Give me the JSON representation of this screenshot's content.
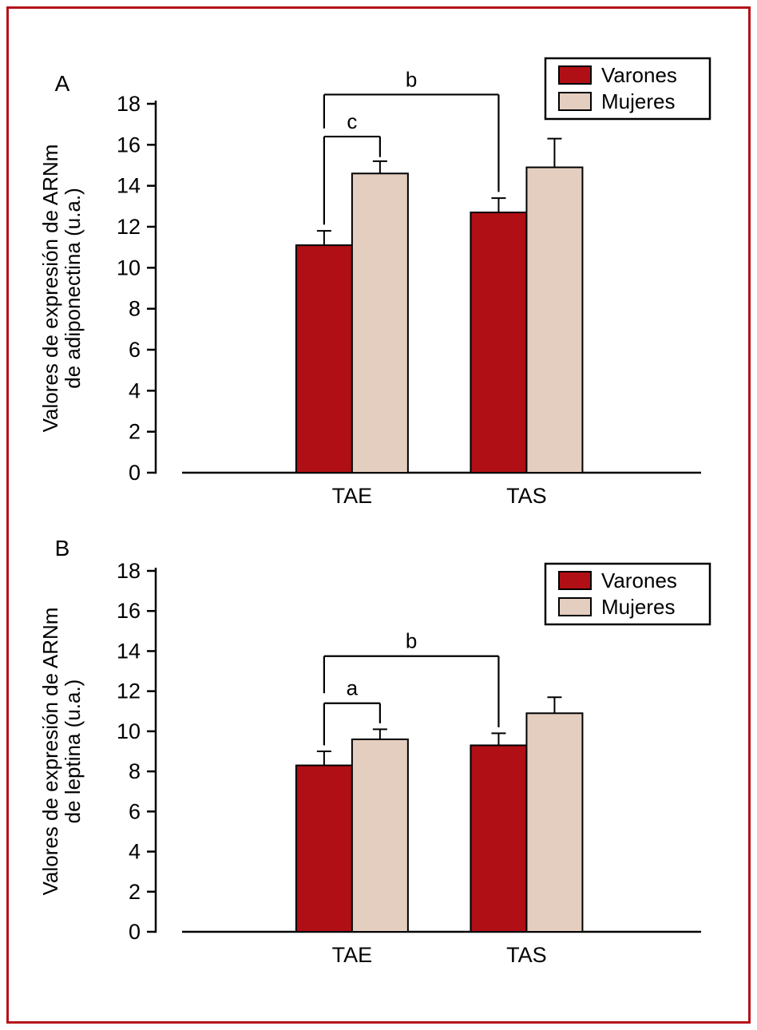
{
  "figure": {
    "border_color": "#b5121b",
    "background": "#ffffff",
    "series_colors": {
      "varones": "#b00f15",
      "mujeres": "#e4cec0"
    }
  },
  "chart_data": [
    {
      "type": "bar",
      "panel_label": "A",
      "ylabel_lines": [
        "Valores de expresión de ARNm",
        "de adiponectina (u.a.)"
      ],
      "ylim": [
        0,
        18
      ],
      "ytick_step": 2,
      "grid": false,
      "categories": [
        "TAE",
        "TAS"
      ],
      "series": [
        {
          "name": "Varones",
          "color": "#b00f15",
          "values": [
            11.1,
            12.7
          ],
          "errors": [
            0.7,
            0.7
          ]
        },
        {
          "name": "Mujeres",
          "color": "#e4cec0",
          "values": [
            14.6,
            14.9
          ],
          "errors": [
            0.6,
            1.4
          ]
        }
      ],
      "legend": {
        "position": "top-right",
        "entries": [
          "Varones",
          "Mujeres"
        ]
      },
      "brackets": [
        {
          "label": "c",
          "y": 16.4,
          "from": {
            "category": 0,
            "series": 0
          },
          "to": {
            "category": 0,
            "series": 1
          },
          "drop_from": 12.1,
          "drop_to": 15.4
        },
        {
          "label": "b",
          "y": 18.45,
          "from": {
            "category": 0,
            "series": 0
          },
          "to": {
            "category": 1,
            "series": 0
          },
          "drop_from": 16.8,
          "drop_to": 13.7
        }
      ]
    },
    {
      "type": "bar",
      "panel_label": "B",
      "ylabel_lines": [
        "Valores de expresión de ARNm",
        "de leptina (u.a.)"
      ],
      "ylim": [
        0,
        18
      ],
      "ytick_step": 2,
      "grid": false,
      "categories": [
        "TAE",
        "TAS"
      ],
      "series": [
        {
          "name": "Varones",
          "color": "#b00f15",
          "values": [
            8.3,
            9.3
          ],
          "errors": [
            0.7,
            0.6
          ]
        },
        {
          "name": "Mujeres",
          "color": "#e4cec0",
          "values": [
            9.6,
            10.9
          ],
          "errors": [
            0.5,
            0.8
          ]
        }
      ],
      "legend": {
        "position": "top-right",
        "entries": [
          "Varones",
          "Mujeres"
        ]
      },
      "brackets": [
        {
          "label": "a",
          "y": 11.4,
          "from": {
            "category": 0,
            "series": 0
          },
          "to": {
            "category": 0,
            "series": 1
          },
          "drop_from": 9.3,
          "drop_to": 10.4
        },
        {
          "label": "b",
          "y": 13.75,
          "from": {
            "category": 0,
            "series": 0
          },
          "to": {
            "category": 1,
            "series": 0
          },
          "drop_from": 11.9,
          "drop_to": 10.2
        }
      ]
    }
  ]
}
